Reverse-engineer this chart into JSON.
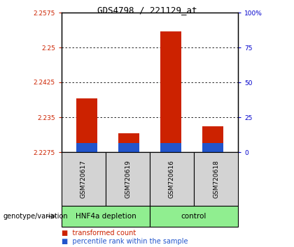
{
  "title": "GDS4798 / 221129_at",
  "samples": [
    "GSM720617",
    "GSM720619",
    "GSM720616",
    "GSM720618"
  ],
  "group_labels": [
    "HNF4a depletion",
    "control"
  ],
  "bar_positions": [
    0,
    1,
    2,
    3
  ],
  "ymin": 2.2275,
  "ymax": 2.2575,
  "yticks_left": [
    2.2275,
    2.235,
    2.2425,
    2.25,
    2.2575
  ],
  "yticks_right": [
    0,
    25,
    50,
    75,
    100
  ],
  "grid_values": [
    2.235,
    2.2425,
    2.25
  ],
  "red_values": [
    2.239,
    2.2315,
    2.2535,
    2.233
  ],
  "blue_values": [
    2.2295,
    2.2295,
    2.2295,
    2.2295
  ],
  "red_color": "#CC2200",
  "blue_color": "#2255CC",
  "bar_width": 0.5,
  "left_label_color": "#CC2200",
  "right_label_color": "#0000CC",
  "group_label": "genotype/variation",
  "legend1": "transformed count",
  "legend2": "percentile rank within the sample",
  "sample_box_color": "#D3D3D3",
  "group_box_color": "#90EE90"
}
